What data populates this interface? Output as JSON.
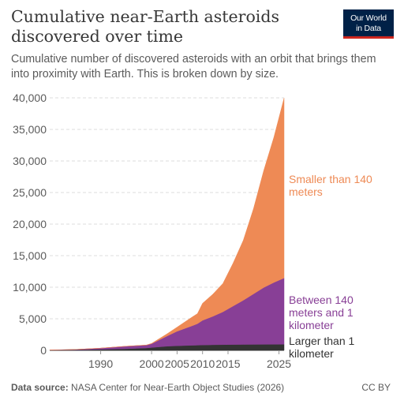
{
  "header": {
    "title": "Cumulative near-Earth asteroids discovered over time",
    "subtitle": "Cumulative number of discovered asteroids with an orbit that brings them into proximity with Earth. This is broken down by size.",
    "logo_line1": "Our World",
    "logo_line2": "in Data"
  },
  "footer": {
    "source_label": "Data source:",
    "source_text": "NASA Center for Near-Earth Object Studies (2026)",
    "license": "CC BY"
  },
  "chart_data": {
    "type": "area",
    "stacked": true,
    "x": [
      1980,
      1985,
      1990,
      1995,
      1999,
      2000,
      2003,
      2005,
      2008,
      2009,
      2010,
      2012,
      2014,
      2016,
      2018,
      2020,
      2022,
      2024,
      2026
    ],
    "series": [
      {
        "name": "Larger than 1 kilometer",
        "color": "#333333",
        "values": [
          40,
          80,
          150,
          250,
          380,
          450,
          650,
          720,
          800,
          820,
          850,
          880,
          900,
          920,
          930,
          940,
          950,
          955,
          960
        ]
      },
      {
        "name": "Between 140 meters and 1 kilometer",
        "color": "#883f96",
        "values": [
          10,
          60,
          200,
          400,
          450,
          600,
          1600,
          2300,
          3100,
          3400,
          3900,
          4500,
          5200,
          6100,
          7000,
          8000,
          9000,
          9800,
          10500
        ]
      },
      {
        "name": "Smaller than 140 meters",
        "color": "#ee8a55",
        "values": [
          0,
          0,
          0,
          0,
          20,
          50,
          350,
          650,
          1400,
          1600,
          2700,
          3500,
          4500,
          6800,
          9500,
          13500,
          18500,
          23000,
          28500
        ]
      }
    ],
    "legend_labels": [
      [
        "Smaller than 140",
        "meters"
      ],
      [
        "Between 140",
        "meters and 1",
        "kilometer"
      ],
      [
        "Larger than 1",
        "kilometer"
      ]
    ],
    "legend_colors": [
      "#ee8a55",
      "#883f96",
      "#333333"
    ],
    "y_ticks": [
      0,
      5000,
      10000,
      15000,
      20000,
      25000,
      30000,
      35000,
      40000
    ],
    "y_tick_labels": [
      "0",
      "5,000",
      "10,000",
      "15,000",
      "20,000",
      "25,000",
      "30,000",
      "35,000",
      "40,000"
    ],
    "x_ticks": [
      1990,
      2000,
      2005,
      2010,
      2015,
      2025
    ],
    "x_tick_labels": [
      "1990",
      "2000",
      "2005",
      "2010",
      "2015",
      "2025"
    ],
    "xlim": [
      1980,
      2026
    ],
    "ylim": [
      0,
      40000
    ],
    "grid": "horizontal dashed",
    "legend_placement": "right, inline"
  }
}
